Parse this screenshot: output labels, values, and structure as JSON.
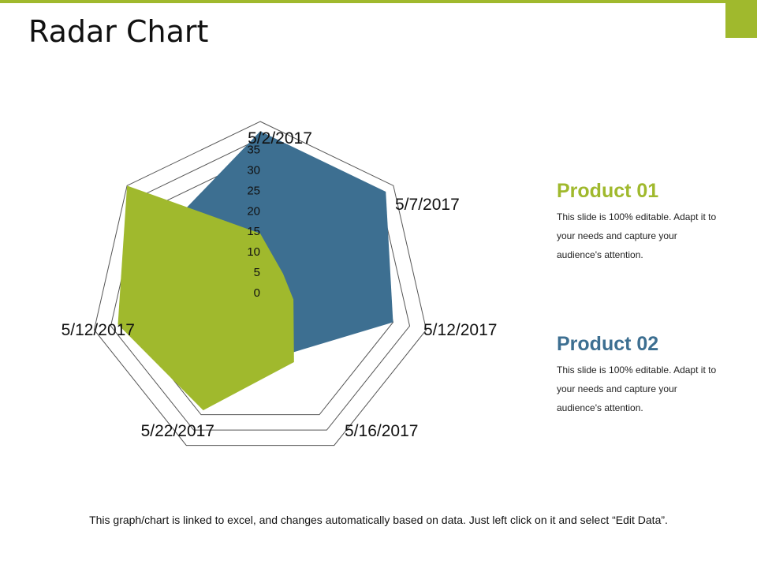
{
  "slide": {
    "title": "Radar Chart",
    "footer": "This graph/chart is linked to excel, and changes automatically based on data. Just left click on it and select “Edit Data”.",
    "accent_color": "#a0b92d"
  },
  "legend": [
    {
      "title": "Product 01",
      "description": "This slide is 100% editable. Adapt it to your needs and capture your audience's attention.",
      "color": "#a0b92d"
    },
    {
      "title": "Product 02",
      "description": "This slide is 100% editable. Adapt it to your needs and capture your audience's attention.",
      "color": "#3d6f91"
    }
  ],
  "chart_data": {
    "type": "radar",
    "categories": [
      "5/2/2017",
      "5/7/2017",
      "5/12/2017",
      "5/16/2017",
      "5/22/2017",
      "5/12/2017"
    ],
    "axis_ticks": [
      0,
      5,
      10,
      15,
      20,
      25,
      30,
      35
    ],
    "rlim": [
      0,
      35
    ],
    "grid_rings": 3,
    "series": [
      {
        "name": "Product 02",
        "color": "#3d6f91",
        "values": [
          33,
          33,
          28,
          14,
          12,
          13
        ]
      },
      {
        "name": "Product 01",
        "color": "#a0b92d",
        "values": [
          12,
          6,
          7,
          16,
          27,
          30
        ]
      }
    ],
    "extra_point": {
      "series": "Product 01",
      "value": 35,
      "between": [
        "5/12/2017",
        "5/2/2017"
      ]
    }
  }
}
